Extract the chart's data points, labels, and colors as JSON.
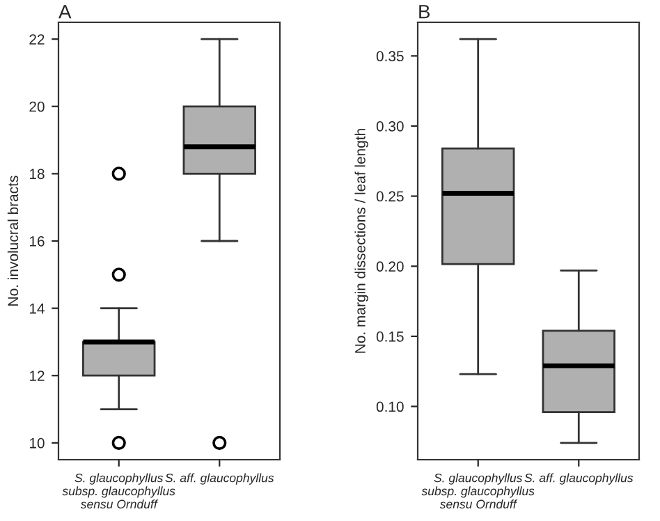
{
  "chart_data": [
    {
      "type": "box",
      "title": "A",
      "ylabel": "No. involucral bracts",
      "categories": [
        "S. glaucophyllus\nsubsp. glaucophyllus\nsensu Ornduff",
        "S. aff. glaucophyllus"
      ],
      "color": "#b0b0b0",
      "ylim": [
        9.5,
        22.5
      ],
      "yticks": [
        10,
        12,
        14,
        16,
        18,
        20,
        22
      ],
      "grid": false,
      "legend": false,
      "boxes": [
        {
          "low": 11,
          "q1": 12,
          "median": 13,
          "q3": 13,
          "high": 14,
          "outliers": [
            10,
            15,
            18
          ]
        },
        {
          "low": 16,
          "q1": 18,
          "median": 18.8,
          "q3": 20,
          "high": 22,
          "outliers": [
            10
          ]
        }
      ]
    },
    {
      "type": "box",
      "title": "B",
      "ylabel": "No. margin dissections / leaf length",
      "categories": [
        "S. glaucophyllus\nsubsp. glaucophyllus\nsensu Ornduff",
        "S. aff. glaucophyllus"
      ],
      "color": "#b0b0b0",
      "ylim": [
        0.062,
        0.374
      ],
      "yticks": [
        {
          "value": 0.1,
          "label": "0.10"
        },
        {
          "value": 0.15,
          "label": "0.15"
        },
        {
          "value": 0.2,
          "label": "0.20"
        },
        {
          "value": 0.25,
          "label": "0.25"
        },
        {
          "value": 0.3,
          "label": "0.30"
        },
        {
          "value": 0.35,
          "label": "0.35"
        }
      ],
      "grid": false,
      "legend": false,
      "boxes": [
        {
          "low": 0.123,
          "q1": 0.2015,
          "median": 0.252,
          "q3": 0.284,
          "high": 0.362
        },
        {
          "low": 0.074,
          "q1": 0.096,
          "median": 0.129,
          "q3": 0.154,
          "high": 0.197
        }
      ]
    }
  ]
}
